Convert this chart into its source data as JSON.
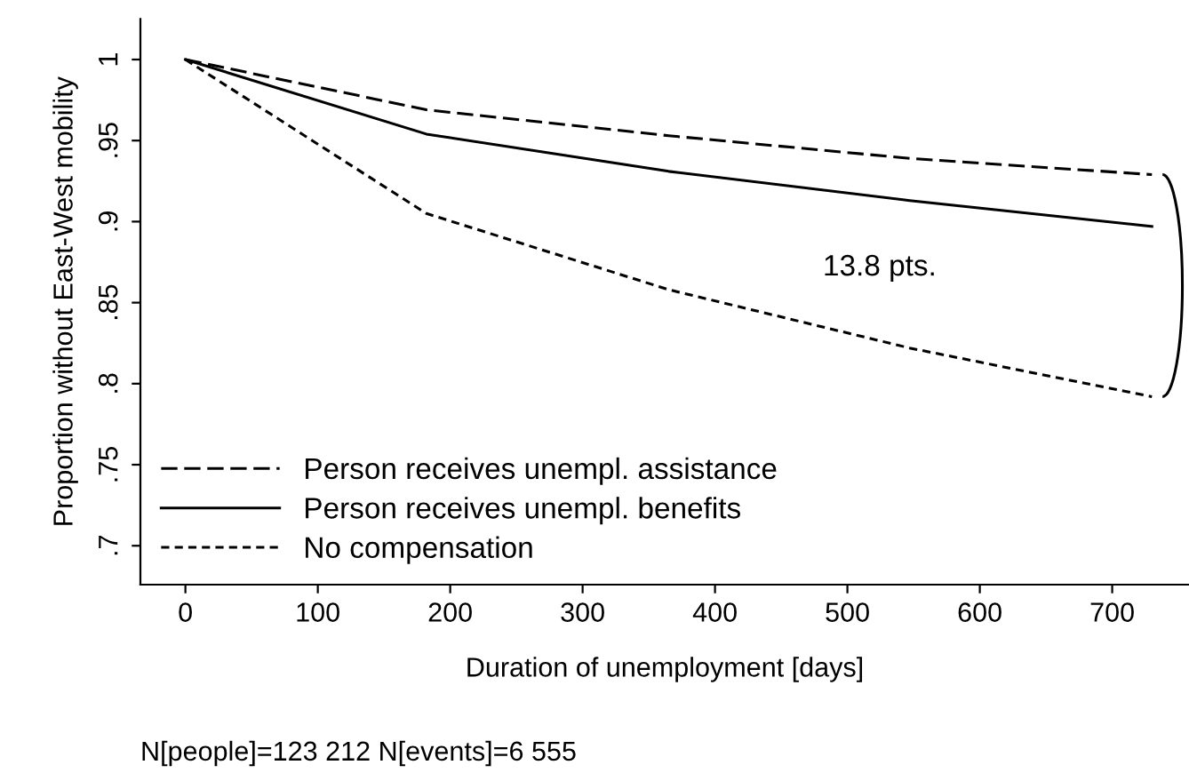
{
  "chart_data": {
    "type": "line",
    "xlabel": "Duration of unemployment [days]",
    "ylabel": "Proportion without East-West mobility",
    "x": [
      0,
      182,
      365,
      547,
      730
    ],
    "series": [
      {
        "name": "Person receives unempl. assistance",
        "color": "#000000",
        "line_style": "dashed",
        "values": [
          1,
          0.969,
          0.953,
          0.939,
          0.929
        ]
      },
      {
        "name": "Person receives unempl. benefits",
        "color": "#000000",
        "line_style": "solid",
        "values": [
          1,
          0.954,
          0.931,
          0.913,
          0.897
        ]
      },
      {
        "name": "No compensation",
        "color": "#000000",
        "line_style": "dotted",
        "values": [
          1,
          0.905,
          0.858,
          0.822,
          0.792
        ]
      }
    ],
    "xlim": [
      -34,
      758
    ],
    "ylim": [
      0.676,
      1.025
    ],
    "xticks": [
      0,
      100,
      200,
      300,
      400,
      500,
      600,
      700
    ],
    "yticks": [
      {
        "value": 0.7,
        "label": ".7"
      },
      {
        "value": 0.75,
        "label": ".75"
      },
      {
        "value": 0.8,
        "label": ".8"
      },
      {
        "value": 0.85,
        "label": ".85"
      },
      {
        "value": 0.9,
        "label": ".9"
      },
      {
        "value": 0.95,
        "label": ".95"
      },
      {
        "value": 1,
        "label": "1"
      }
    ],
    "grid": false,
    "legend": "bottom left",
    "marker": "none",
    "annotations": [
      "13.8 pts.",
      "N[people]=123 212 N[events]=6 555"
    ]
  }
}
